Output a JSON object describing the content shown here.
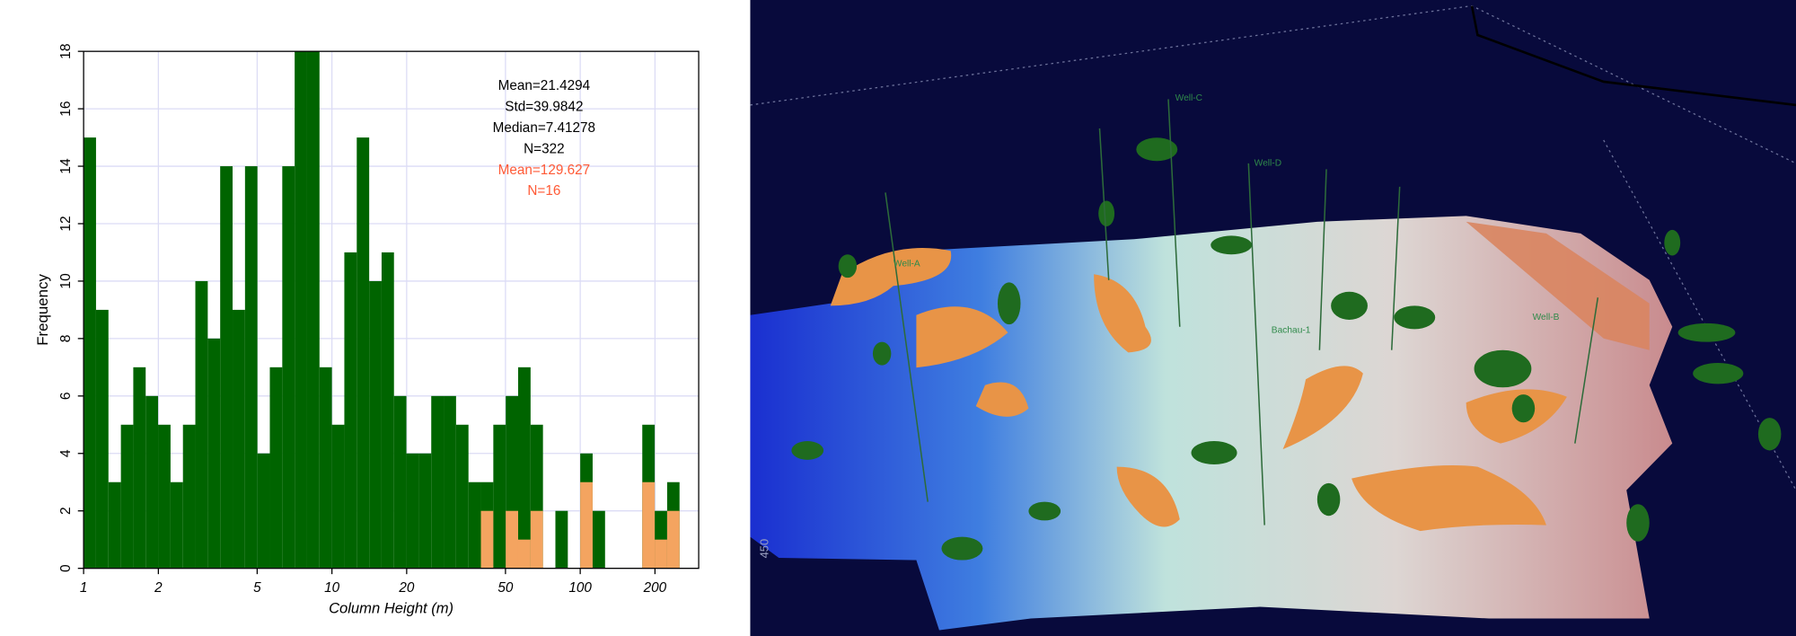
{
  "chart_data": {
    "type": "histogram",
    "xlabel": "Column Height (m)",
    "ylabel": "Frequency",
    "xscale": "log",
    "xlim": [
      1,
      300
    ],
    "ylim": [
      0,
      18
    ],
    "xticks": [
      1,
      2,
      5,
      10,
      20,
      50,
      100,
      200
    ],
    "yticks": [
      0,
      2,
      4,
      6,
      8,
      10,
      12,
      14,
      16,
      18
    ],
    "grid": true,
    "bins": [
      1,
      1.122,
      1.259,
      1.413,
      1.585,
      1.778,
      1.995,
      2.239,
      2.512,
      2.818,
      3.162,
      3.548,
      3.981,
      4.467,
      5.012,
      5.623,
      6.31,
      7.079,
      7.943,
      8.913,
      10,
      11.22,
      12.59,
      14.13,
      15.85,
      17.78,
      19.95,
      22.39,
      25.12,
      28.18,
      31.62,
      35.48,
      39.81,
      44.67,
      50.12,
      56.23,
      63.1,
      70.79,
      79.43,
      89.13,
      100,
      112.2,
      125.9,
      141.3,
      158.5,
      177.8,
      199.5,
      223.9,
      251.2
    ],
    "series": [
      {
        "color": "#006400",
        "values": [
          15,
          9,
          3,
          5,
          7,
          6,
          5,
          3,
          5,
          10,
          8,
          14,
          9,
          14,
          4,
          7,
          14,
          18,
          18,
          7,
          5,
          11,
          15,
          10,
          11,
          6,
          4,
          4,
          6,
          6,
          5,
          3,
          3,
          5,
          6,
          7,
          5,
          0,
          2,
          0,
          4,
          2,
          0,
          0,
          0,
          5,
          2,
          3
        ]
      },
      {
        "color": "#f4a460",
        "values": [
          0,
          0,
          0,
          0,
          0,
          0,
          0,
          0,
          0,
          0,
          0,
          0,
          0,
          0,
          0,
          0,
          0,
          0,
          0,
          0,
          0,
          0,
          0,
          0,
          0,
          0,
          0,
          0,
          0,
          0,
          0,
          0,
          2,
          0,
          2,
          1,
          2,
          0,
          0,
          0,
          3,
          0,
          0,
          0,
          0,
          3,
          1,
          2
        ]
      }
    ],
    "annotations": [
      {
        "text": "Mean=21.4294",
        "color": "#000000"
      },
      {
        "text": "Std=39.9842",
        "color": "#000000"
      },
      {
        "text": "Median=7.41278",
        "color": "#000000"
      },
      {
        "text": "N=322",
        "color": "#000000"
      },
      {
        "text": "Mean=129.627",
        "color": "#ff5a36"
      },
      {
        "text": "N=16",
        "color": "#ff5a36"
      }
    ]
  },
  "scene": {
    "axis_label": "450",
    "well_labels": [
      "Well-A",
      "Bachau-1",
      "Well-B",
      "Well-C",
      "Well-D"
    ]
  }
}
